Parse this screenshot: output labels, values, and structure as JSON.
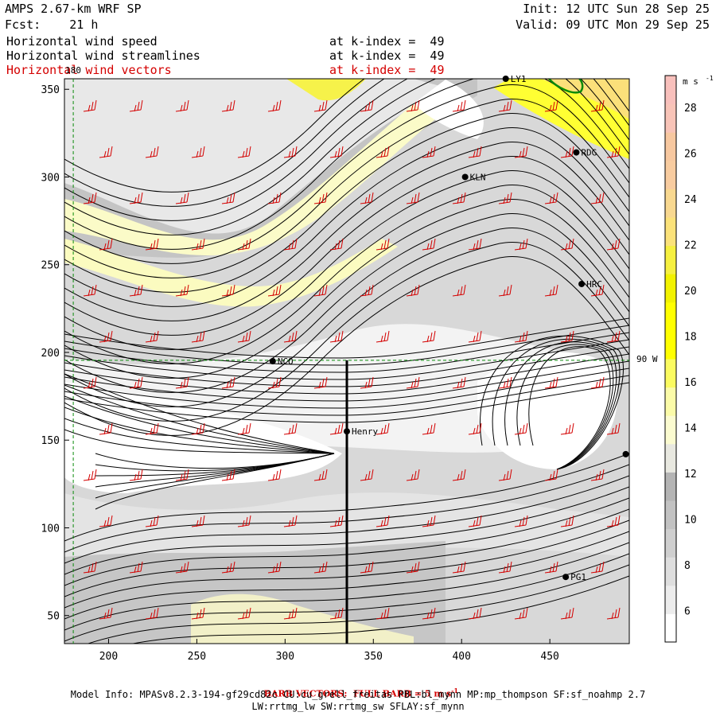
{
  "header": {
    "model": "AMPS 2.67-km WRF SP",
    "forecast": "Fcst:    21 h",
    "init": "Init: 12 UTC Sun 28 Sep 25",
    "valid": "Valid: 09 UTC Mon 29 Sep 25",
    "fields": [
      {
        "name": "Horizontal wind speed",
        "level": "at k-index =  49",
        "color": "#000000"
      },
      {
        "name": "Horizontal wind streamlines",
        "level": "at k-index =  49",
        "color": "#000000"
      },
      {
        "name": "Horizontal wind vectors",
        "level": "at k-index =  49",
        "color": "#d40000"
      }
    ]
  },
  "map": {
    "x_ticks": [
      "200",
      "250",
      "300",
      "350",
      "400",
      "450"
    ],
    "x_tick_values": [
      200,
      250,
      300,
      350,
      400,
      450
    ],
    "y_ticks": [
      "50",
      "100",
      "150",
      "200",
      "250",
      "300",
      "350"
    ],
    "y_tick_values": [
      50,
      100,
      150,
      200,
      250,
      300,
      350
    ],
    "x_range": [
      175,
      495
    ],
    "y_range": [
      34,
      356
    ],
    "meridian_label": "180",
    "parallel_label": "90 W",
    "stations": [
      {
        "id": "NCO",
        "x": 293,
        "y": 195
      },
      {
        "id": "Henry",
        "x": 335,
        "y": 155
      },
      {
        "id": "KLN",
        "x": 402,
        "y": 300
      },
      {
        "id": "RDG",
        "x": 465,
        "y": 314
      },
      {
        "id": "HRC",
        "x": 468,
        "y": 239
      },
      {
        "id": "PG1",
        "x": 459,
        "y": 72
      },
      {
        "id": "LY1",
        "x": 425,
        "y": 356
      },
      {
        "id": "",
        "x": 493,
        "y": 142
      }
    ],
    "cross_section_x": 335
  },
  "colorbar": {
    "unit": "m s",
    "unit_exp": "-1",
    "labels": [
      "6",
      "8",
      "10",
      "12",
      "14",
      "16",
      "18",
      "20",
      "22",
      "24",
      "26",
      "28"
    ],
    "colors": [
      "#ffffff",
      "#ececec",
      "#dedede",
      "#cfcfcf",
      "#c2c2c2",
      "#b4b4b4",
      "#e8e8e0",
      "#fbfbd0",
      "#fbfba8",
      "#fbfb60",
      "#ffff00",
      "#ffff00",
      "#f2f200",
      "#f6f040",
      "#fbe27a",
      "#f8d890",
      "#f8cca0",
      "#f7c8a0",
      "#f8c4b8",
      "#f8c0bc"
    ]
  },
  "footer": {
    "barb_note": "BARB VECTORS:  FULL BARB = 5 m s",
    "barb_exp": "-1",
    "model_info": "Model Info: MPASv8.2.3-194-gf29cd82c CU:cu_grell_freitas PBL:bl_mynn MP:mp_thompson SF:sf_noahmp 2.7",
    "model_info_2": "LW:rrtmg_lw SW:rrtmg_sw SFLAY:sf_mynn"
  }
}
